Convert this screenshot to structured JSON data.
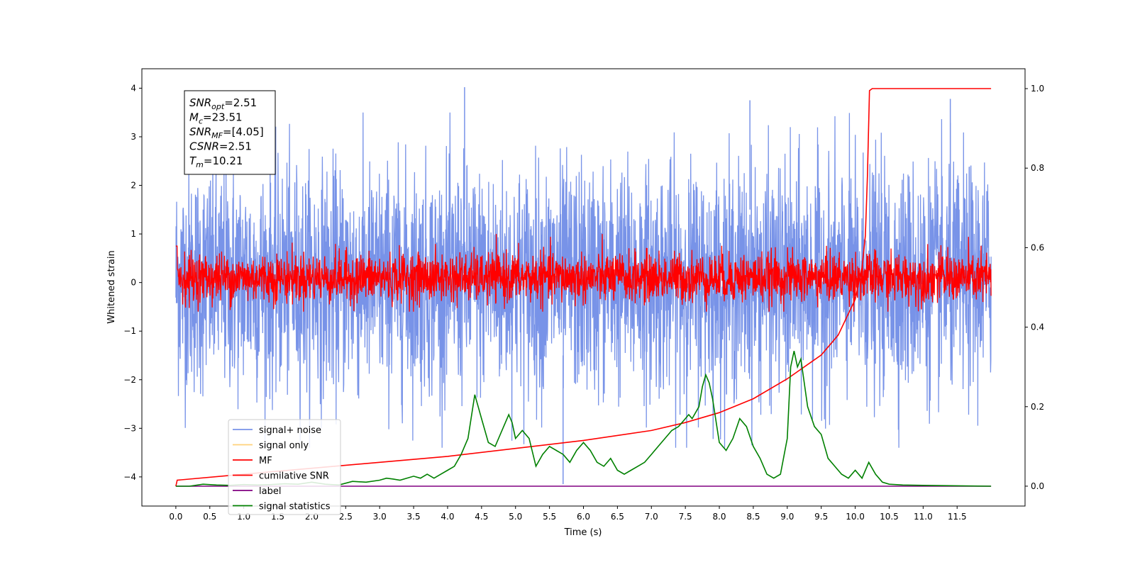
{
  "chart_data": {
    "type": "line",
    "title": "",
    "xlabel": "Time (s)",
    "ylabel": "Whitened strain",
    "y2label": "",
    "xlim": [
      -0.5,
      12.5
    ],
    "ylim": [
      -4.6,
      4.4
    ],
    "y2lim": [
      -0.05,
      1.05
    ],
    "xticks": [
      "0.0",
      "0.5",
      "1.0",
      "1.5",
      "2.0",
      "2.5",
      "3.0",
      "3.5",
      "4.0",
      "4.5",
      "5.0",
      "5.5",
      "6.0",
      "6.5",
      "7.0",
      "7.5",
      "8.0",
      "8.5",
      "9.0",
      "9.5",
      "10.0",
      "10.5",
      "11.0",
      "11.5"
    ],
    "yticks": [
      "4",
      "3",
      "2",
      "1",
      "0",
      "−1",
      "−2",
      "−3",
      "−4"
    ],
    "y2ticks": [
      "1.0",
      "0.8",
      "0.6",
      "0.4",
      "0.2",
      "0.0"
    ],
    "grid": false,
    "legend_position": "bottom-left",
    "annotation": {
      "lines": [
        {
          "sym": "SNR",
          "sub": "opt",
          "val": "=2.51"
        },
        {
          "sym": "M",
          "sub": "c",
          "val": "=23.51"
        },
        {
          "sym": "SNR",
          "sub": "MF",
          "val": "=[4.05]"
        },
        {
          "sym": "CSNR",
          "sub": "",
          "val": "=2.51"
        },
        {
          "sym": "T",
          "sub": "m",
          "val": "=10.21"
        }
      ]
    },
    "series": [
      {
        "name": "signal+ noise",
        "color": "#7893e8",
        "axis": "left",
        "style": "noise band, approx. from -2.5 to 2.6, spikes to 4.02 near t=4.25 and -4.15 near t=5.7",
        "band_low": -2.5,
        "band_high": 2.6,
        "spikes": [
          {
            "x": 4.25,
            "y": 4.02
          },
          {
            "x": 5.7,
            "y": -4.15
          },
          {
            "x": 11.4,
            "y": 3.78
          },
          {
            "x": 8.45,
            "y": 3.75
          }
        ]
      },
      {
        "name": "signal only",
        "color": "#ffd27a",
        "axis": "left",
        "x": [],
        "y": []
      },
      {
        "name": "MF",
        "color": "#ff0000",
        "axis": "left",
        "style": "noise band, approx. from -0.6 to 0.8",
        "band_low": -0.6,
        "band_high": 0.8
      },
      {
        "name": "cumilative SNR",
        "color": "#ff0000",
        "axis": "right",
        "x": [
          0.0,
          0.02,
          1.0,
          2.0,
          3.0,
          4.0,
          5.0,
          6.0,
          7.0,
          7.5,
          8.0,
          8.5,
          9.0,
          9.5,
          9.75,
          10.0,
          10.1,
          10.15,
          10.18,
          10.21,
          10.25,
          11.0,
          12.0
        ],
        "y": [
          0.0,
          0.015,
          0.03,
          0.045,
          0.06,
          0.075,
          0.095,
          0.115,
          0.14,
          0.16,
          0.185,
          0.22,
          0.27,
          0.33,
          0.38,
          0.47,
          0.55,
          0.63,
          0.78,
          0.995,
          1.0,
          1.0,
          1.0
        ]
      },
      {
        "name": "label",
        "color": "#800080",
        "axis": "right",
        "x": [
          0.0,
          12.0
        ],
        "y": [
          0.0,
          0.0
        ]
      },
      {
        "name": "signal statistics",
        "color": "#008000",
        "axis": "right",
        "x": [
          0.0,
          0.2,
          0.4,
          0.6,
          0.8,
          1.0,
          1.2,
          1.4,
          1.6,
          1.8,
          2.0,
          2.2,
          2.4,
          2.6,
          2.8,
          3.0,
          3.1,
          3.2,
          3.3,
          3.5,
          3.6,
          3.7,
          3.8,
          3.9,
          4.0,
          4.1,
          4.2,
          4.3,
          4.4,
          4.45,
          4.5,
          4.6,
          4.7,
          4.8,
          4.9,
          4.95,
          5.0,
          5.1,
          5.2,
          5.3,
          5.4,
          5.5,
          5.6,
          5.7,
          5.8,
          5.9,
          6.0,
          6.1,
          6.2,
          6.3,
          6.4,
          6.5,
          6.6,
          6.7,
          6.8,
          6.9,
          7.0,
          7.1,
          7.2,
          7.3,
          7.4,
          7.45,
          7.5,
          7.55,
          7.6,
          7.7,
          7.75,
          7.8,
          7.85,
          7.9,
          8.0,
          8.1,
          8.2,
          8.3,
          8.4,
          8.5,
          8.6,
          8.7,
          8.8,
          8.9,
          9.0,
          9.05,
          9.1,
          9.15,
          9.2,
          9.3,
          9.4,
          9.5,
          9.6,
          9.7,
          9.8,
          9.9,
          10.0,
          10.1,
          10.2,
          10.3,
          10.4,
          10.5,
          10.7,
          11.0,
          11.5,
          12.0
        ],
        "y": [
          0.0,
          0.0,
          0.005,
          0.003,
          0.002,
          0.004,
          0.003,
          0.004,
          0.006,
          0.005,
          0.01,
          0.005,
          0.003,
          0.012,
          0.01,
          0.015,
          0.02,
          0.018,
          0.015,
          0.025,
          0.02,
          0.03,
          0.02,
          0.03,
          0.04,
          0.05,
          0.08,
          0.12,
          0.23,
          0.2,
          0.17,
          0.11,
          0.1,
          0.14,
          0.18,
          0.16,
          0.12,
          0.14,
          0.12,
          0.05,
          0.08,
          0.1,
          0.09,
          0.08,
          0.06,
          0.09,
          0.11,
          0.09,
          0.06,
          0.05,
          0.07,
          0.04,
          0.03,
          0.04,
          0.05,
          0.06,
          0.08,
          0.1,
          0.12,
          0.14,
          0.15,
          0.16,
          0.17,
          0.18,
          0.17,
          0.2,
          0.25,
          0.28,
          0.26,
          0.22,
          0.11,
          0.09,
          0.12,
          0.17,
          0.15,
          0.1,
          0.07,
          0.03,
          0.02,
          0.03,
          0.12,
          0.3,
          0.34,
          0.3,
          0.32,
          0.2,
          0.15,
          0.13,
          0.07,
          0.05,
          0.03,
          0.02,
          0.04,
          0.02,
          0.06,
          0.03,
          0.01,
          0.005,
          0.003,
          0.002,
          0.001,
          0.0
        ]
      }
    ]
  }
}
